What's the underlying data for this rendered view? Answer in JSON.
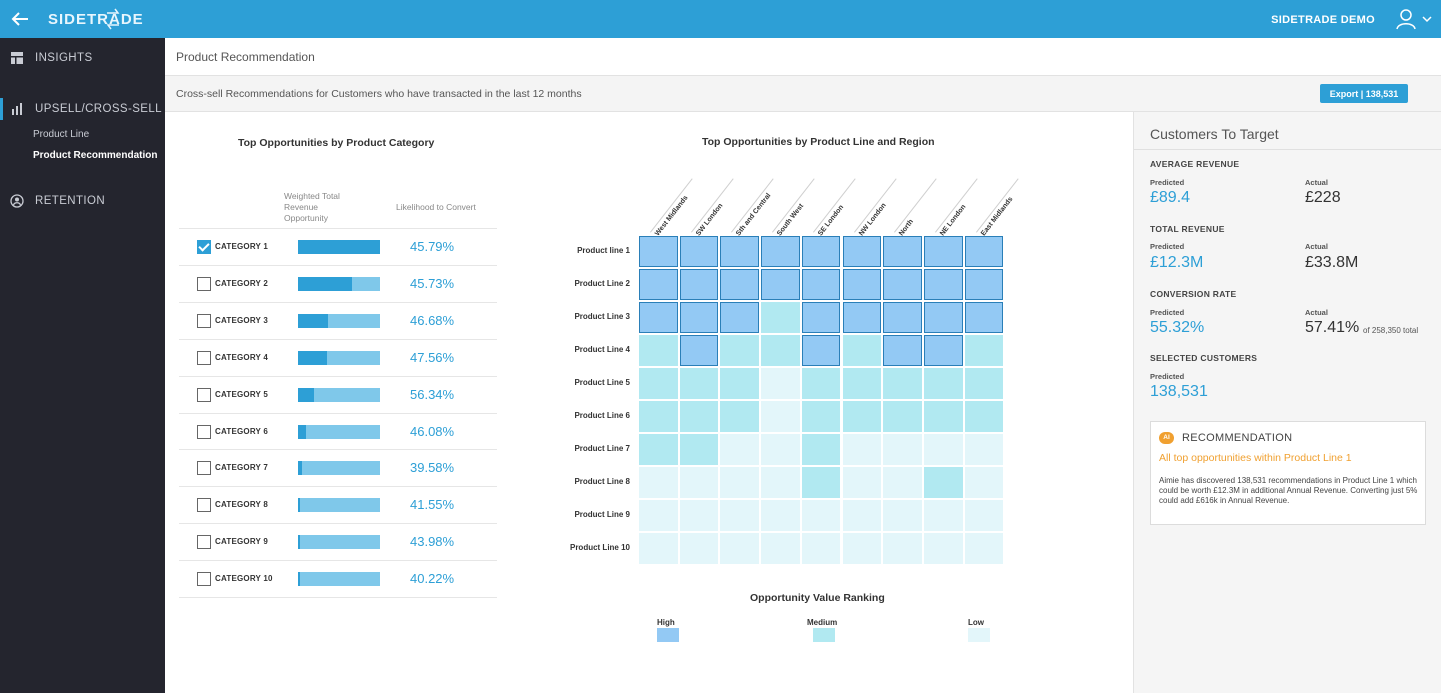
{
  "topbar": {
    "logo": "SIDETRADE",
    "user_name": "SIDETRADE DEMO",
    "icons": {
      "back": "arrow-left-icon",
      "user": "user-icon",
      "chevron": "chevron-down-icon"
    },
    "color": "#2d9fd6"
  },
  "sidebar": {
    "items": [
      {
        "label": "INSIGHTS",
        "icon": "layout-icon"
      },
      {
        "label": "UPSELL/CROSS-SELL",
        "icon": "bar-chart-icon"
      },
      {
        "label": "RETENTION",
        "icon": "user-circle-icon"
      }
    ],
    "sub_items": [
      {
        "label": "Product Line"
      },
      {
        "label": "Product Recommendation"
      }
    ]
  },
  "page": {
    "title": "Product Recommendation",
    "subtitle": "Cross-sell Recommendations for Customers who have transacted in the last 12 months",
    "export_label": "Export | 138,531"
  },
  "categories": {
    "title": "Top Opportunities by Product Category",
    "col_revenue": "Weighted Total Revenue Opportunity",
    "col_likelihood": "Likelihood to Convert",
    "rows": [
      {
        "label": "CATEGORY 1",
        "checked": true,
        "opportunity_fraction": 1.0,
        "likelihood": "45.79%"
      },
      {
        "label": "CATEGORY 2",
        "checked": false,
        "opportunity_fraction": 0.66,
        "likelihood": "45.73%"
      },
      {
        "label": "CATEGORY 3",
        "checked": false,
        "opportunity_fraction": 0.37,
        "likelihood": "46.68%"
      },
      {
        "label": "CATEGORY 4",
        "checked": false,
        "opportunity_fraction": 0.35,
        "likelihood": "47.56%"
      },
      {
        "label": "CATEGORY 5",
        "checked": false,
        "opportunity_fraction": 0.2,
        "likelihood": "56.34%"
      },
      {
        "label": "CATEGORY 6",
        "checked": false,
        "opportunity_fraction": 0.1,
        "likelihood": "46.08%"
      },
      {
        "label": "CATEGORY 7",
        "checked": false,
        "opportunity_fraction": 0.05,
        "likelihood": "39.58%"
      },
      {
        "label": "CATEGORY 8",
        "checked": false,
        "opportunity_fraction": 0.03,
        "likelihood": "41.55%"
      },
      {
        "label": "CATEGORY 9",
        "checked": false,
        "opportunity_fraction": 0.02,
        "likelihood": "43.98%"
      },
      {
        "label": "CATEGORY 10",
        "checked": false,
        "opportunity_fraction": 0.02,
        "likelihood": "40.22%"
      }
    ]
  },
  "heatmap": {
    "title": "Top Opportunities by Product Line and Region",
    "regions": [
      "West Midlands",
      "SW London",
      "Sth and Central",
      "South West",
      "SE London",
      "NW London",
      "North",
      "NE London",
      "East Midlands"
    ],
    "product_lines": [
      "Product line 1",
      "Product Line 2",
      "Product Line 3",
      "Product Line 4",
      "Product Line 5",
      "Product Line 6",
      "Product Line 7",
      "Product Line 8",
      "Product Line 9",
      "Product Line 10"
    ],
    "levels": [
      [
        3,
        3,
        3,
        3,
        3,
        3,
        3,
        3,
        3
      ],
      [
        3,
        3,
        3,
        3,
        3,
        3,
        3,
        3,
        3
      ],
      [
        3,
        3,
        3,
        2,
        3,
        3,
        3,
        3,
        3
      ],
      [
        2,
        3,
        2,
        2,
        3,
        2,
        3,
        3,
        2
      ],
      [
        2,
        2,
        2,
        1,
        2,
        2,
        2,
        2,
        2
      ],
      [
        2,
        2,
        2,
        1,
        2,
        2,
        2,
        2,
        2
      ],
      [
        2,
        2,
        1,
        1,
        2,
        1,
        1,
        1,
        1
      ],
      [
        1,
        1,
        1,
        1,
        2,
        1,
        1,
        2,
        1
      ],
      [
        1,
        1,
        1,
        1,
        1,
        1,
        1,
        1,
        1
      ],
      [
        1,
        1,
        1,
        1,
        1,
        1,
        1,
        1,
        1
      ]
    ],
    "colors": {
      "high": "#93c9f4",
      "medium": "#b1e9f1",
      "low": "#e3f6fa",
      "high_border": "#2a7fb8"
    },
    "legend": {
      "title": "Opportunity Value Ranking",
      "high": "High",
      "medium": "Medium",
      "low": "Low"
    }
  },
  "customers": {
    "title": "Customers To Target",
    "average_revenue": {
      "label": "AVERAGE REVENUE",
      "predicted_label": "Predicted",
      "predicted": "£89.4",
      "actual_label": "Actual",
      "actual": "£228"
    },
    "total_revenue": {
      "label": "TOTAL REVENUE",
      "predicted_label": "Predicted",
      "predicted": "£12.3M",
      "actual_label": "Actual",
      "actual": "£33.8M"
    },
    "conversion_rate": {
      "label": "CONVERSION RATE",
      "predicted_label": "Predicted",
      "predicted": "55.32%",
      "actual_label": "Actual",
      "actual": "57.41%",
      "actual_note": "of 258,350 total"
    },
    "selected": {
      "label": "SELECTED CUSTOMERS",
      "predicted_label": "Predicted",
      "predicted": "138,531"
    }
  },
  "recommendation": {
    "badge": "AI",
    "title": "RECOMMENDATION",
    "highlight": "All top opportunities within Product Line 1",
    "body": "Aimie has discovered 138,531 recommendations in Product Line 1 which could be worth £12.3M in additional Annual Revenue. Converting just 5% could add £616k in Annual Revenue."
  }
}
